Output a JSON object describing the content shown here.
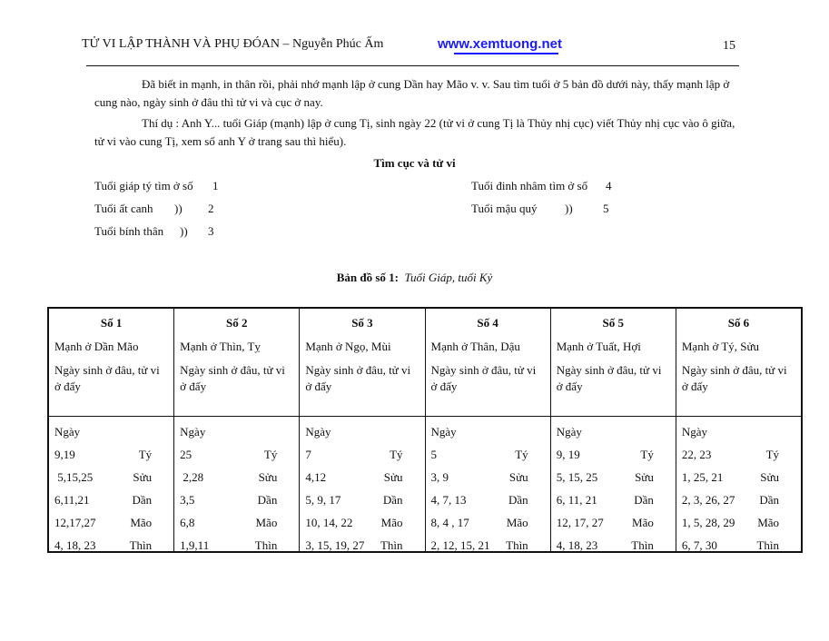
{
  "header": {
    "title": "TỬ VI LẬP THÀNH VÀ PHỤ ĐÓAN – Nguyễn Phúc Ấm",
    "url": "www.xemtuong.net",
    "page_number": "15",
    "url_color": "#1a1aff"
  },
  "paragraphs": [
    "Đã biết in mạnh, in thân rồi, phải nhớ mạnh lập ở cung Dần hay Mão v. v. Sau tìm tuổi ở 5 bản đồ dưới này, thấy mạnh lập ở cung nào, ngày sinh ở đâu thì tử vi và cục ở nay.",
    "Thí dụ : Anh Y... tuổi Giáp (mạnh) lập ở cung Tị, sinh ngày 22 (tử vi ở cung Tị là Thủy nhị cục) viết Thủy nhị cục vào ô giữa, tử vi vào cung Tị, xem số anh Y ở trang sau thì hiểu)."
  ],
  "section_title": "Tìm cục và tử vi",
  "tuoi_left": [
    {
      "label": "Tuổi giáp tý tìm ở số",
      "mark": "",
      "num": "1"
    },
    {
      "label": "Tuổi ất canh",
      "mark": "))",
      "num": "2"
    },
    {
      "label": "Tuổi bính thân",
      "mark": "))",
      "num": "3"
    }
  ],
  "tuoi_right": [
    {
      "label": "Tuổi đinh nhâm tìm ở số",
      "mark": "",
      "num": "4"
    },
    {
      "label": "Tuổi mậu quý",
      "mark": "))",
      "num": "5"
    }
  ],
  "map_title": {
    "bold": "Bản đồ số 1:",
    "italic": "Tuổi Giáp, tuổi Kỷ"
  },
  "table": {
    "birth_note": "Ngày sinh ở đâu, tử vi ở đấy",
    "ngay_label": "Ngày",
    "branches": [
      "Tý",
      "Sửu",
      "Dần",
      "Mão",
      "Thìn"
    ],
    "columns": [
      {
        "title": "Số 1",
        "menh": "Mạnh ở Dần Mão",
        "days": [
          "9,19",
          " 5,15,25",
          "6,11,21",
          "12,17,27",
          "4, 18, 23"
        ]
      },
      {
        "title": "Số 2",
        "menh": "Mạnh ở Thìn, Tỵ",
        "days": [
          "25",
          " 2,28",
          "3,5",
          "6,8",
          "1,9,11"
        ]
      },
      {
        "title": "Số 3",
        "menh": "Mạnh ở Ngọ, Mùi",
        "days": [
          "7",
          "4,12",
          "5, 9, 17",
          "10, 14, 22",
          "3, 15, 19, 27"
        ]
      },
      {
        "title": "Số 4",
        "menh": "Mạnh ở Thân, Dậu",
        "days": [
          "5",
          "3, 9",
          "4, 7, 13",
          "8, 4 , 17",
          "2, 12, 15, 21"
        ]
      },
      {
        "title": "Số 5",
        "menh": "Mạnh ở Tuất, Hợi",
        "days": [
          "9, 19",
          "5, 15, 25",
          "6, 11, 21",
          "12, 17, 27",
          "4, 18, 23"
        ]
      },
      {
        "title": "Số 6",
        "menh": "Mạnh ở Tý, Sửu",
        "days": [
          "22, 23",
          "1, 25, 21",
          "2, 3, 26, 27",
          "1, 5, 28, 29",
          "6, 7, 30"
        ]
      }
    ]
  }
}
